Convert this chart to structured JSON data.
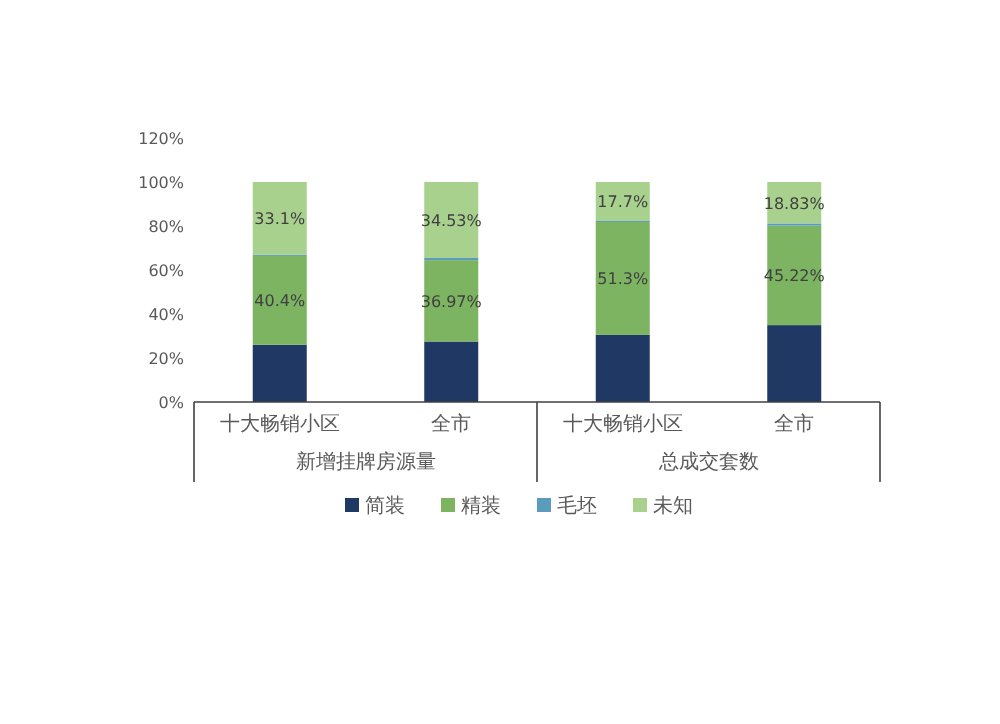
{
  "chart_data": {
    "type": "bar",
    "stacked": true,
    "categories": [
      "十大畅销小区",
      "全市",
      "十大畅销小区",
      "全市"
    ],
    "series": [
      {
        "name": "简装",
        "color": "#203864",
        "values": [
          26.0,
          27.5,
          30.5,
          34.95
        ],
        "value_labels": [
          null,
          null,
          null,
          null
        ]
      },
      {
        "name": "精装",
        "color": "#7cb462",
        "values": [
          40.4,
          36.97,
          51.3,
          45.22
        ],
        "value_labels": [
          "40.4%",
          "36.97%",
          "51.3%",
          "45.22%"
        ]
      },
      {
        "name": "毛坯",
        "color": "#5b9bbd",
        "values": [
          0.5,
          1.0,
          0.5,
          1.0
        ],
        "value_labels": [
          null,
          null,
          null,
          null
        ]
      },
      {
        "name": "未知",
        "color": "#a9d18e",
        "values": [
          33.1,
          34.53,
          17.7,
          18.83
        ],
        "value_labels": [
          "33.1%",
          "34.53%",
          "17.7%",
          "18.83%"
        ]
      }
    ],
    "annotations": [
      "新增挂牌房源量",
      "总成交套数"
    ],
    "ylim": [
      0,
      120
    ],
    "yticks": [
      {
        "value": 0,
        "label": "0%"
      },
      {
        "value": 20,
        "label": "20%"
      },
      {
        "value": 40,
        "label": "40%"
      },
      {
        "value": 60,
        "label": "60%"
      },
      {
        "value": 80,
        "label": "80%"
      },
      {
        "value": 100,
        "label": "100%"
      },
      {
        "value": 120,
        "label": "120%"
      }
    ],
    "legend": "bottom"
  }
}
